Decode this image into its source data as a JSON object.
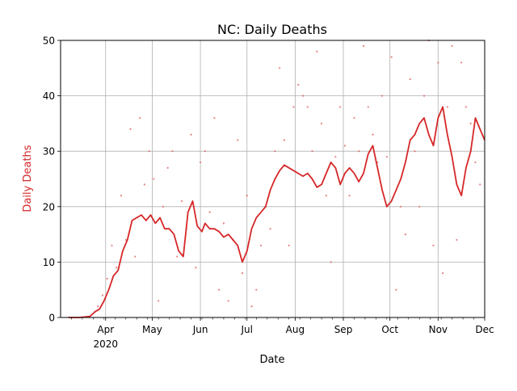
{
  "chart_data": {
    "type": "line",
    "title": "NC: Daily Deaths",
    "xlabel": "Date",
    "ylabel": "Daily Deaths",
    "ylim": [
      0,
      50
    ],
    "xlim": [
      "2020-03-03",
      "2020-12-01"
    ],
    "grid": true,
    "yticks": [
      0,
      10,
      20,
      30,
      40,
      50
    ],
    "xticks": [
      {
        "date": "2020-04-01",
        "label": "Apr",
        "sublabel": "2020"
      },
      {
        "date": "2020-05-01",
        "label": "May",
        "sublabel": ""
      },
      {
        "date": "2020-06-01",
        "label": "Jun",
        "sublabel": ""
      },
      {
        "date": "2020-07-01",
        "label": "Jul",
        "sublabel": ""
      },
      {
        "date": "2020-08-01",
        "label": "Aug",
        "sublabel": ""
      },
      {
        "date": "2020-09-01",
        "label": "Sep",
        "sublabel": ""
      },
      {
        "date": "2020-10-01",
        "label": "Oct",
        "sublabel": ""
      },
      {
        "date": "2020-11-01",
        "label": "Nov",
        "sublabel": ""
      },
      {
        "date": "2020-12-01",
        "label": "Dec",
        "sublabel": ""
      }
    ],
    "colors": {
      "line": "#d62728",
      "points": "#e06060",
      "ylabel": "#d62728",
      "grid": "#b0b0b0"
    },
    "series": [
      {
        "name": "",
        "style": "line",
        "x": [
          "2020-03-08",
          "2020-03-15",
          "2020-03-22",
          "2020-03-25",
          "2020-03-28",
          "2020-03-31",
          "2020-04-03",
          "2020-04-06",
          "2020-04-09",
          "2020-04-12",
          "2020-04-15",
          "2020-04-18",
          "2020-04-21",
          "2020-04-24",
          "2020-04-27",
          "2020-04-30",
          "2020-05-03",
          "2020-05-06",
          "2020-05-09",
          "2020-05-12",
          "2020-05-15",
          "2020-05-18",
          "2020-05-21",
          "2020-05-24",
          "2020-05-27",
          "2020-05-30",
          "2020-06-02",
          "2020-06-04",
          "2020-06-07",
          "2020-06-10",
          "2020-06-13",
          "2020-06-16",
          "2020-06-19",
          "2020-06-22",
          "2020-06-25",
          "2020-06-28",
          "2020-07-01",
          "2020-07-04",
          "2020-07-07",
          "2020-07-10",
          "2020-07-13",
          "2020-07-16",
          "2020-07-19",
          "2020-07-22",
          "2020-07-25",
          "2020-07-28",
          "2020-07-31",
          "2020-08-03",
          "2020-08-06",
          "2020-08-09",
          "2020-08-12",
          "2020-08-15",
          "2020-08-18",
          "2020-08-21",
          "2020-08-24",
          "2020-08-27",
          "2020-08-30",
          "2020-09-02",
          "2020-09-05",
          "2020-09-08",
          "2020-09-11",
          "2020-09-14",
          "2020-09-17",
          "2020-09-20",
          "2020-09-23",
          "2020-09-26",
          "2020-09-29",
          "2020-10-02",
          "2020-10-05",
          "2020-10-08",
          "2020-10-11",
          "2020-10-14",
          "2020-10-17",
          "2020-10-20",
          "2020-10-23",
          "2020-10-26",
          "2020-10-29",
          "2020-11-01",
          "2020-11-04",
          "2020-11-07",
          "2020-11-10",
          "2020-11-13",
          "2020-11-16",
          "2020-11-19",
          "2020-11-22",
          "2020-11-25",
          "2020-11-28",
          "2020-12-01"
        ],
        "y": [
          0,
          0,
          0.2,
          1,
          1.5,
          3,
          5,
          7.5,
          8.5,
          12,
          14,
          17.5,
          18,
          18.5,
          17.5,
          18.5,
          17,
          18,
          16,
          16,
          15,
          12,
          11,
          19,
          21,
          16.5,
          15.5,
          17,
          16,
          16,
          15.5,
          14.5,
          15,
          14,
          13,
          10,
          12,
          16,
          18,
          19,
          20,
          23,
          25,
          26.5,
          27.5,
          27,
          26.5,
          26,
          25.5,
          26,
          25,
          23.5,
          24,
          26,
          28,
          27,
          24,
          26,
          27,
          26,
          24.5,
          26,
          29.5,
          31,
          27,
          23,
          20,
          21,
          23,
          25,
          28,
          32,
          33,
          35,
          36,
          33,
          31,
          36,
          38,
          33,
          29,
          24,
          22,
          27,
          30,
          36,
          34,
          32
        ]
      },
      {
        "name": "",
        "style": "points",
        "x": [
          "2020-03-25",
          "2020-03-27",
          "2020-03-30",
          "2020-04-02",
          "2020-04-05",
          "2020-04-08",
          "2020-04-11",
          "2020-04-14",
          "2020-04-17",
          "2020-04-20",
          "2020-04-23",
          "2020-04-26",
          "2020-04-29",
          "2020-05-02",
          "2020-05-05",
          "2020-05-08",
          "2020-05-11",
          "2020-05-14",
          "2020-05-17",
          "2020-05-20",
          "2020-05-23",
          "2020-05-26",
          "2020-05-29",
          "2020-06-01",
          "2020-06-04",
          "2020-06-07",
          "2020-06-10",
          "2020-06-13",
          "2020-06-16",
          "2020-06-19",
          "2020-06-22",
          "2020-06-25",
          "2020-06-28",
          "2020-07-01",
          "2020-07-04",
          "2020-07-07",
          "2020-07-10",
          "2020-07-13",
          "2020-07-16",
          "2020-07-19",
          "2020-07-22",
          "2020-07-25",
          "2020-07-28",
          "2020-07-31",
          "2020-08-03",
          "2020-08-06",
          "2020-08-09",
          "2020-08-12",
          "2020-08-15",
          "2020-08-18",
          "2020-08-21",
          "2020-08-24",
          "2020-08-27",
          "2020-08-30",
          "2020-09-02",
          "2020-09-05",
          "2020-09-08",
          "2020-09-11",
          "2020-09-14",
          "2020-09-17",
          "2020-09-20",
          "2020-09-23",
          "2020-09-26",
          "2020-09-29",
          "2020-10-02",
          "2020-10-05",
          "2020-10-08",
          "2020-10-11",
          "2020-10-14",
          "2020-10-17",
          "2020-10-20",
          "2020-10-23",
          "2020-10-26",
          "2020-10-29",
          "2020-11-01",
          "2020-11-04",
          "2020-11-07",
          "2020-11-10",
          "2020-11-13",
          "2020-11-16",
          "2020-11-19",
          "2020-11-22",
          "2020-11-25",
          "2020-11-28"
        ],
        "y": [
          1,
          2,
          4,
          7,
          13,
          9,
          22,
          14,
          34,
          11,
          36,
          24,
          30,
          25,
          3,
          20,
          27,
          30,
          11,
          21,
          16,
          33,
          9,
          28,
          30,
          19,
          36,
          5,
          17,
          3,
          14,
          32,
          8,
          22,
          2,
          5,
          13,
          20,
          16,
          30,
          45,
          32,
          13,
          38,
          42,
          40,
          38,
          30,
          48,
          35,
          22,
          10,
          29,
          38,
          31,
          22,
          36,
          30,
          49,
          38,
          33,
          28,
          40,
          29,
          47,
          5,
          20,
          15,
          43,
          30,
          20,
          40,
          50,
          13,
          46,
          8,
          38,
          49,
          14,
          46,
          38,
          35,
          28,
          24
        ]
      }
    ]
  }
}
